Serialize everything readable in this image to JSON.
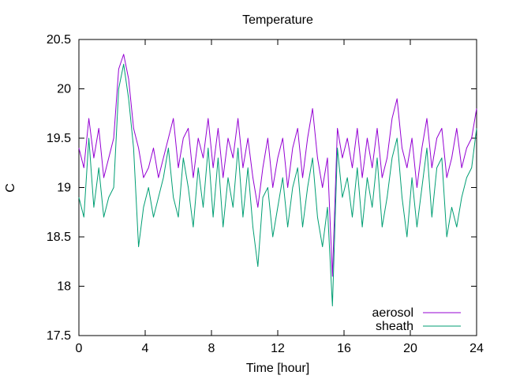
{
  "chart_data": {
    "type": "line",
    "title": "Temperature",
    "xlabel": "Time [hour]",
    "ylabel": "C",
    "xlim": [
      0,
      24
    ],
    "ylim": [
      17.5,
      20.5
    ],
    "xticks": [
      0,
      4,
      8,
      12,
      16,
      20,
      24
    ],
    "yticks": [
      17.5,
      18,
      18.5,
      19,
      19.5,
      20,
      20.5
    ],
    "xtick_labels": [
      "0",
      "4",
      "8",
      "12",
      "16",
      "20",
      "24"
    ],
    "ytick_labels": [
      "17.5",
      "18",
      "18.5",
      "19",
      "19.5",
      "20",
      "20.5"
    ],
    "grid": false,
    "legend_position": "bottom-right",
    "series": [
      {
        "name": "aerosol",
        "color": "#9400d3",
        "x": [
          0,
          0.3,
          0.6,
          0.9,
          1.2,
          1.5,
          1.8,
          2.1,
          2.4,
          2.7,
          3.0,
          3.3,
          3.6,
          3.9,
          4.2,
          4.5,
          4.8,
          5.1,
          5.4,
          5.7,
          6.0,
          6.3,
          6.6,
          6.9,
          7.2,
          7.5,
          7.8,
          8.1,
          8.4,
          8.7,
          9.0,
          9.3,
          9.6,
          9.9,
          10.2,
          10.5,
          10.8,
          11.1,
          11.4,
          11.7,
          12.0,
          12.3,
          12.6,
          12.9,
          13.2,
          13.5,
          13.8,
          14.1,
          14.4,
          14.7,
          15.0,
          15.3,
          15.6,
          15.9,
          16.2,
          16.5,
          16.8,
          17.1,
          17.4,
          17.7,
          18.0,
          18.3,
          18.6,
          18.9,
          19.2,
          19.5,
          19.8,
          20.1,
          20.4,
          20.7,
          21.0,
          21.3,
          21.6,
          21.9,
          22.2,
          22.5,
          22.8,
          23.1,
          23.4,
          23.7,
          24.0
        ],
        "y": [
          19.4,
          19.2,
          19.7,
          19.3,
          19.6,
          19.1,
          19.3,
          19.5,
          20.2,
          20.35,
          20.1,
          19.6,
          19.4,
          19.1,
          19.2,
          19.4,
          19.1,
          19.3,
          19.5,
          19.7,
          19.2,
          19.5,
          19.6,
          19.1,
          19.5,
          19.3,
          19.7,
          19.2,
          19.6,
          19.1,
          19.5,
          19.3,
          19.7,
          19.2,
          19.5,
          19.1,
          18.8,
          19.2,
          19.5,
          19.0,
          19.3,
          19.5,
          19.0,
          19.4,
          19.6,
          19.1,
          19.5,
          19.8,
          19.3,
          19.0,
          19.3,
          18.1,
          19.6,
          19.3,
          19.5,
          19.2,
          19.6,
          19.1,
          19.5,
          19.2,
          19.6,
          19.1,
          19.3,
          19.7,
          19.9,
          19.4,
          19.2,
          19.5,
          19.0,
          19.4,
          19.7,
          19.2,
          19.5,
          19.6,
          19.1,
          19.3,
          19.6,
          19.2,
          19.4,
          19.5,
          19.8
        ]
      },
      {
        "name": "sheath",
        "color": "#009e73",
        "x": [
          0,
          0.3,
          0.6,
          0.9,
          1.2,
          1.5,
          1.8,
          2.1,
          2.4,
          2.7,
          3.0,
          3.3,
          3.6,
          3.9,
          4.2,
          4.5,
          4.8,
          5.1,
          5.4,
          5.7,
          6.0,
          6.3,
          6.6,
          6.9,
          7.2,
          7.5,
          7.8,
          8.1,
          8.4,
          8.7,
          9.0,
          9.3,
          9.6,
          9.9,
          10.2,
          10.5,
          10.8,
          11.1,
          11.4,
          11.7,
          12.0,
          12.3,
          12.6,
          12.9,
          13.2,
          13.5,
          13.8,
          14.1,
          14.4,
          14.7,
          15.0,
          15.3,
          15.6,
          15.9,
          16.2,
          16.5,
          16.8,
          17.1,
          17.4,
          17.7,
          18.0,
          18.3,
          18.6,
          18.9,
          19.2,
          19.5,
          19.8,
          20.1,
          20.4,
          20.7,
          21.0,
          21.3,
          21.6,
          21.9,
          22.2,
          22.5,
          22.8,
          23.1,
          23.4,
          23.7,
          24.0
        ],
        "y": [
          18.9,
          18.7,
          19.5,
          18.8,
          19.2,
          18.7,
          18.9,
          19.0,
          20.0,
          20.25,
          19.9,
          19.4,
          18.4,
          18.8,
          19.0,
          18.7,
          18.9,
          19.1,
          19.4,
          18.9,
          18.7,
          19.3,
          19.0,
          18.6,
          19.2,
          18.8,
          19.4,
          18.7,
          19.3,
          18.6,
          19.1,
          18.8,
          19.4,
          18.7,
          19.2,
          18.6,
          18.2,
          18.9,
          19.0,
          18.5,
          18.8,
          19.1,
          18.6,
          19.0,
          19.2,
          18.6,
          19.0,
          19.3,
          18.7,
          18.4,
          18.8,
          17.8,
          19.4,
          18.9,
          19.1,
          18.7,
          19.2,
          18.6,
          19.1,
          18.8,
          19.3,
          18.6,
          18.9,
          19.3,
          19.5,
          18.9,
          18.5,
          19.1,
          18.6,
          19.0,
          19.4,
          18.7,
          19.2,
          19.3,
          18.5,
          18.8,
          18.6,
          18.9,
          19.1,
          19.2,
          19.6
        ]
      }
    ]
  }
}
